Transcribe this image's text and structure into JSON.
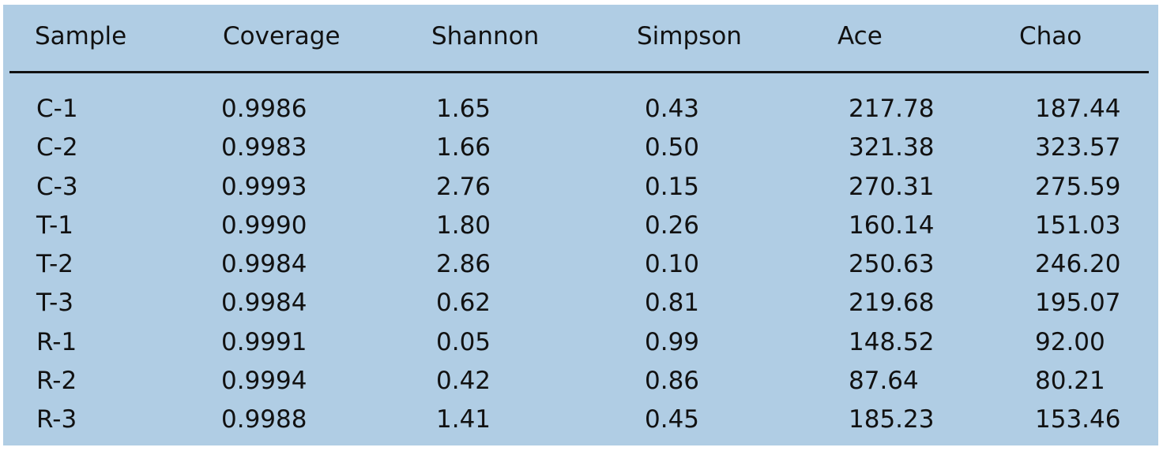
{
  "table": {
    "columns": [
      "Sample",
      "Coverage",
      "Shannon",
      "Simpson",
      "Ace",
      "Chao"
    ],
    "rows": [
      [
        "C-1",
        "0.9986",
        "1.65",
        "0.43",
        "217.78",
        "187.44"
      ],
      [
        "C-2",
        "0.9983",
        "1.66",
        "0.50",
        "321.38",
        "323.57"
      ],
      [
        "C-3",
        "0.9993",
        "2.76",
        "0.15",
        "270.31",
        "275.59"
      ],
      [
        "T-1",
        "0.9990",
        "1.80",
        "0.26",
        "160.14",
        "151.03"
      ],
      [
        "T-2",
        "0.9984",
        "2.86",
        "0.10",
        "250.63",
        "246.20"
      ],
      [
        "T-3",
        "0.9984",
        "0.62",
        "0.81",
        "219.68",
        "195.07"
      ],
      [
        "R-1",
        "0.9991",
        "0.05",
        "0.99",
        "148.52",
        "92.00"
      ],
      [
        "R-2",
        "0.9994",
        "0.42",
        "0.86",
        "87.64",
        "80.21"
      ],
      [
        "R-3",
        "0.9988",
        "1.41",
        "0.45",
        "185.23",
        "153.46"
      ]
    ]
  },
  "colors": {
    "background": "#b0cde4",
    "text": "#111111",
    "rule": "#111111"
  }
}
